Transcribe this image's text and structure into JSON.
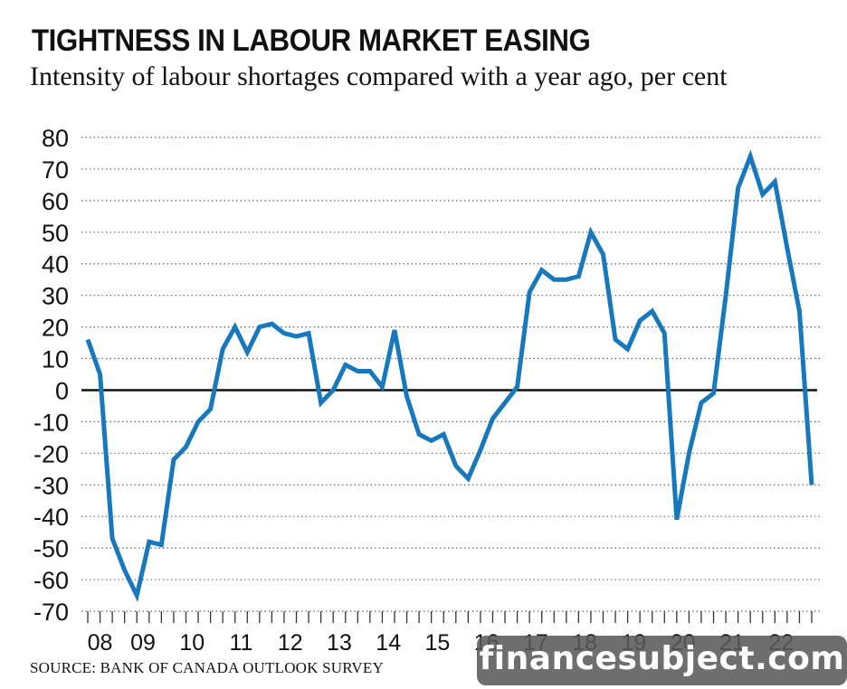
{
  "title": "TIGHTNESS IN LABOUR MARKET EASING",
  "subtitle": "Intensity of labour shortages compared with a year ago, per cent",
  "source": "SOURCE: BANK OF CANADA OUTLOOK SURVEY",
  "watermark": "financesubject.com",
  "colors": {
    "line": "#1878be",
    "grid": "#666666",
    "zero_line": "#111111",
    "text": "#111111"
  },
  "chart_data": {
    "type": "line",
    "title": "TIGHTNESS IN LABOUR MARKET EASING",
    "subtitle": "Intensity of labour shortages compared with a year ago, per cent",
    "xlabel": "",
    "ylabel": "",
    "ylim": [
      -70,
      80
    ],
    "yticks": [
      80,
      70,
      60,
      50,
      40,
      30,
      20,
      10,
      0,
      -10,
      -20,
      -30,
      -40,
      -50,
      -60,
      -70
    ],
    "xtick_labels": [
      "08",
      "09",
      "10",
      "11",
      "12",
      "13",
      "14",
      "15",
      "16",
      "17",
      "18",
      "19",
      "20",
      "21",
      "22"
    ],
    "x_start_quarter": 2008.25,
    "grid": "horizontal dotted",
    "legend": "none",
    "series": [
      {
        "values": [
          16,
          5,
          -47,
          -57,
          -65,
          -48,
          -49,
          -22,
          -18,
          -10,
          -6,
          13,
          20,
          12,
          20,
          21,
          18,
          17,
          18,
          -4,
          0,
          8,
          6,
          6,
          1,
          19,
          -2,
          -14,
          -16,
          -14,
          -24,
          -28,
          -19,
          -9,
          -4,
          1,
          31,
          38,
          35,
          35,
          36,
          50,
          43,
          16,
          13,
          22,
          25,
          18,
          -41,
          -20,
          -4,
          -1,
          30,
          64,
          74,
          62,
          66,
          45,
          25,
          -30
        ]
      }
    ]
  }
}
